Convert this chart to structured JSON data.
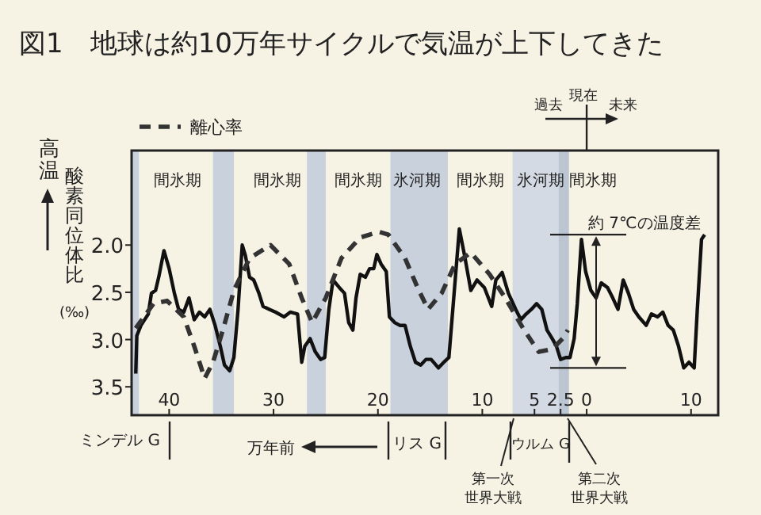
{
  "chart_data": {
    "type": "line",
    "title": "図1　地球は約10万年サイクルで気温が上下してきた",
    "xlabel": "万年前",
    "ylabel": "酸素同位体比 (‰)",
    "xlim": [
      -43.6,
      12.6
    ],
    "xticks": [
      {
        "value": -40,
        "label": "40"
      },
      {
        "value": -30,
        "label": "30"
      },
      {
        "value": -20,
        "label": "20"
      },
      {
        "value": -10,
        "label": "10"
      },
      {
        "value": -5,
        "label": "5"
      },
      {
        "value": -2.5,
        "label": "2.5"
      },
      0,
      {
        "value": 10,
        "label": "10"
      }
    ],
    "ylim": [
      3.8,
      1.0
    ],
    "yticks": [
      {
        "value": 2,
        "label": "2.0"
      },
      2.5,
      {
        "value": 3,
        "label": "3.0"
      },
      3.5
    ],
    "legend": "top left",
    "series": [
      {
        "color": "#111111",
        "line_style": "solid",
        "x": [
          -43.2,
          -43.1,
          -42.7,
          -42.0,
          -41.7,
          -41.3,
          -41.0,
          -40.5,
          -40.0,
          -39.5,
          -39.1,
          -38.6,
          -38.1,
          -37.6,
          -37.1,
          -36.6,
          -36.1,
          -35.6,
          -35.1,
          -34.7,
          -34.2,
          -33.8,
          -33.4,
          -33.0,
          -32.7,
          -32.3,
          -31.9,
          -31.4,
          -31.0,
          -30.4,
          -29.8,
          -29.0,
          -28.4,
          -27.7,
          -27.3,
          -27.0,
          -26.5,
          -26.0,
          -25.5,
          -25.1,
          -24.7,
          -24.3,
          -23.7,
          -23.2,
          -22.8,
          -22.4,
          -22.1,
          -21.7,
          -21.2,
          -20.8,
          -20.4,
          -20.1,
          -19.7,
          -19.2,
          -18.9,
          -18.4,
          -17.9,
          -17.4,
          -16.9,
          -16.4,
          -15.9,
          -15.4,
          -14.9,
          -14.2,
          -13.6,
          -13.2,
          -12.7,
          -12.2,
          -11.7,
          -11.1,
          -10.5,
          -9.8,
          -9.1,
          -8.7,
          -8.1,
          -7.5,
          -6.8,
          -6.3,
          -5.8,
          -5.3,
          -4.8,
          -4.3,
          -3.8,
          -3.3,
          -2.9,
          -2.5,
          -2.0,
          -1.6,
          -1.2,
          -0.9,
          -0.5,
          -0.1,
          0.4,
          0.9,
          1.4,
          2.0,
          2.5,
          3.0,
          3.5,
          4.0,
          4.5,
          5.0,
          5.7,
          6.2,
          6.8,
          7.3,
          7.8,
          8.3,
          8.8,
          9.3,
          9.8,
          10.3,
          10.6,
          11.0,
          11.3
        ],
        "values": [
          3.36,
          2.96,
          2.85,
          2.73,
          2.51,
          2.48,
          2.34,
          2.06,
          2.25,
          2.51,
          2.68,
          2.71,
          2.56,
          2.79,
          2.71,
          2.76,
          2.68,
          2.85,
          3.07,
          3.27,
          3.33,
          3.19,
          2.68,
          2.0,
          2.11,
          2.34,
          2.37,
          2.51,
          2.65,
          2.68,
          2.71,
          2.76,
          2.71,
          2.73,
          3.24,
          3.07,
          2.99,
          3.13,
          3.21,
          3.19,
          2.68,
          2.37,
          2.45,
          2.51,
          2.82,
          2.9,
          2.56,
          2.31,
          2.34,
          2.25,
          2.25,
          2.1,
          2.2,
          2.28,
          2.76,
          2.82,
          2.85,
          2.85,
          3.07,
          3.24,
          3.27,
          3.21,
          3.21,
          3.3,
          3.23,
          3.19,
          2.51,
          1.83,
          2.11,
          2.48,
          2.37,
          2.45,
          2.65,
          2.37,
          2.29,
          2.51,
          2.68,
          2.79,
          2.73,
          2.68,
          2.62,
          2.68,
          2.9,
          2.99,
          3.07,
          3.21,
          3.19,
          3.19,
          2.99,
          2.62,
          1.94,
          2.28,
          2.48,
          2.56,
          2.4,
          2.45,
          2.56,
          2.68,
          2.37,
          2.51,
          2.68,
          2.76,
          2.85,
          2.73,
          2.76,
          2.71,
          2.85,
          2.9,
          3.07,
          3.3,
          3.24,
          3.3,
          2.68,
          1.94,
          1.89
        ]
      },
      {
        "name": "離心率",
        "color": "#333333",
        "line_style": "dashed",
        "x": [
          -43.2,
          -41.5,
          -40.2,
          -38.6,
          -37.6,
          -36.6,
          -35.8,
          -34.8,
          -33.8,
          -32.3,
          -30.3,
          -28.5,
          -27.3,
          -26.3,
          -25.0,
          -23.5,
          -21.7,
          -19.9,
          -19.0,
          -17.4,
          -16.2,
          -15.2,
          -13.9,
          -12.6,
          -11.1,
          -9.3,
          -7.8,
          -6.1,
          -4.6,
          -3.3,
          -2.3,
          -1.8
        ],
        "values": [
          2.88,
          2.62,
          2.59,
          2.76,
          3.07,
          3.41,
          3.24,
          2.88,
          2.48,
          2.14,
          2.0,
          2.2,
          2.56,
          2.82,
          2.56,
          2.14,
          1.92,
          1.86,
          1.89,
          2.14,
          2.45,
          2.68,
          2.51,
          2.2,
          2.08,
          2.31,
          2.56,
          2.88,
          3.13,
          3.1,
          2.99,
          2.9
        ]
      }
    ],
    "bands": [
      {
        "axis": "x",
        "from": -43.6,
        "to": -42.9,
        "color": "#c9d1dd"
      },
      {
        "axis": "x",
        "from": -35.8,
        "to": -33.8,
        "color": "#c9d1dd"
      },
      {
        "axis": "x",
        "from": -26.8,
        "to": -25.0,
        "color": "#c9d1dd"
      },
      {
        "axis": "x",
        "from": -18.8,
        "to": -13.3,
        "color": "#c9d1dd"
      },
      {
        "axis": "x",
        "from": -7.1,
        "to": -2.7,
        "color": "#d3dae3"
      },
      {
        "axis": "x",
        "from": -2.7,
        "to": -1.7,
        "color": "#bcc6d3"
      }
    ],
    "annotations": [
      "間氷期",
      "間氷期",
      "間氷期",
      "氷河期",
      "間氷期",
      "氷河期",
      "間氷期",
      "約 7℃の温度差",
      "高温",
      "過去",
      "現在",
      "未来",
      "ミンデル G",
      "リス G",
      "ウルム G",
      "第一次世界大戦",
      "第二次世界大戦"
    ]
  }
}
